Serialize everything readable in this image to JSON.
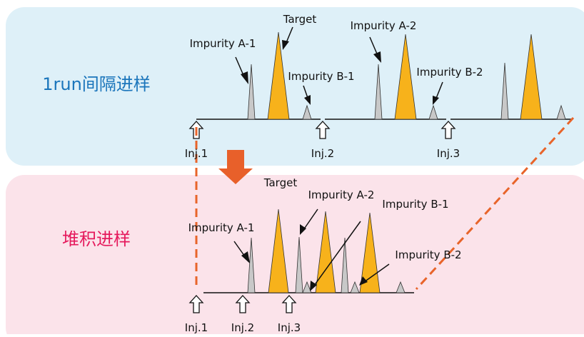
{
  "top": {
    "title": "1run间隔进样",
    "labels": {
      "impurity_a1": "Impurity A-1",
      "target": "Target",
      "impurity_b1": "Impurity B-1",
      "impurity_a2": "Impurity A-2",
      "impurity_b2": "Impurity B-2"
    },
    "injections": [
      "Inj.1",
      "Inj.2",
      "Inj.3"
    ]
  },
  "bottom": {
    "title": "堆积进样",
    "labels": {
      "target": "Target",
      "impurity_a2": "Impurity A-2",
      "impurity_b1": "Impurity B-1",
      "impurity_a1": "Impurity A-1",
      "impurity_b2": "Impurity B-2"
    },
    "injections": [
      "Inj.1",
      "Inj.2",
      "Inj.3"
    ]
  }
}
